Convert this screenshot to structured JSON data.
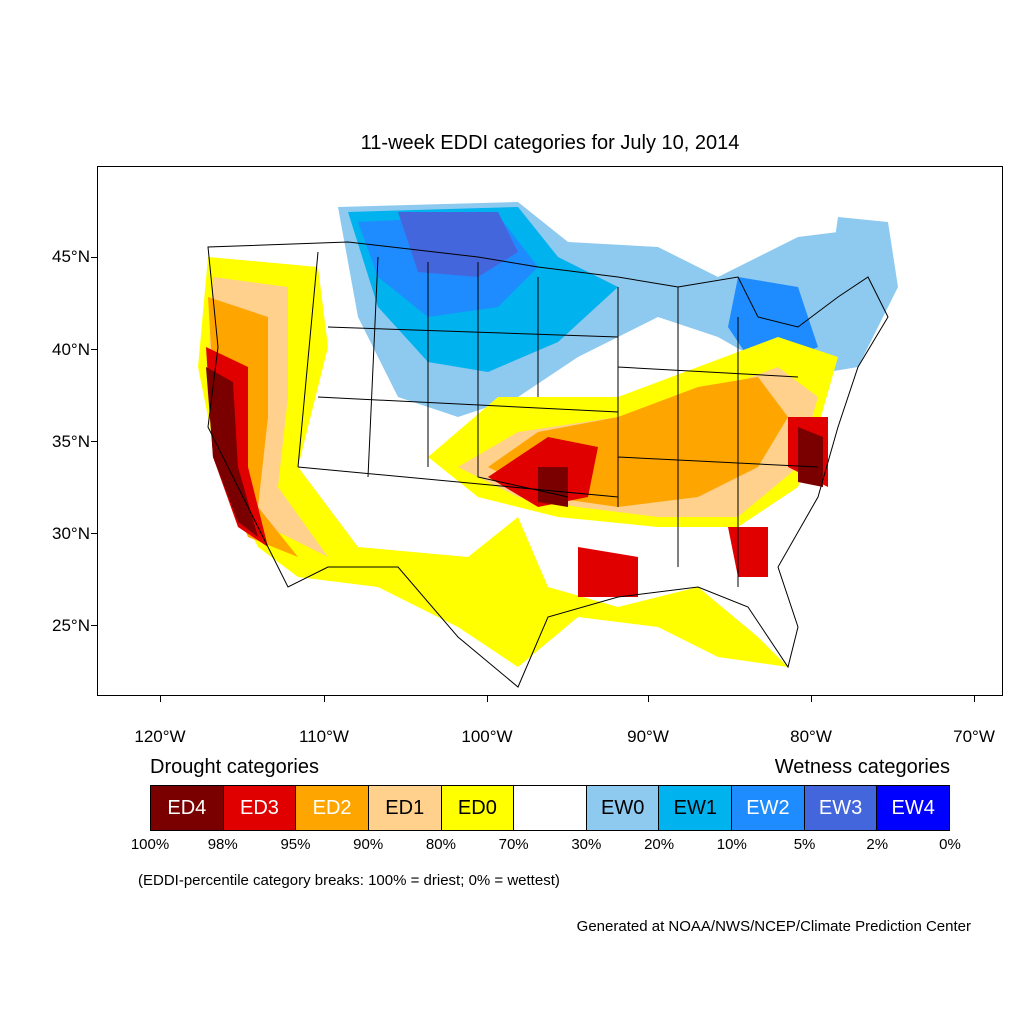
{
  "title": "11-week EDDI categories for July 10, 2014",
  "lat_labels": [
    "45°N",
    "40°N",
    "35°N",
    "30°N",
    "25°N"
  ],
  "lon_labels": [
    "120°W",
    "110°W",
    "100°W",
    "90°W",
    "80°W",
    "70°W"
  ],
  "legend": {
    "drought_heading": "Drought categories",
    "wetness_heading": "Wetness categories",
    "categories": [
      {
        "label": "ED4",
        "color": "#7a0000",
        "text_color": "#ffffff"
      },
      {
        "label": "ED3",
        "color": "#e00000",
        "text_color": "#ffffff"
      },
      {
        "label": "ED2",
        "color": "#ffa500",
        "text_color": "#ffffff"
      },
      {
        "label": "ED1",
        "color": "#ffd18c",
        "text_color": "#000000"
      },
      {
        "label": "ED0",
        "color": "#ffff00",
        "text_color": "#000000"
      },
      {
        "label": "",
        "color": "#ffffff",
        "text_color": "#000000"
      },
      {
        "label": "EW0",
        "color": "#8ec9f0",
        "text_color": "#000000"
      },
      {
        "label": "EW1",
        "color": "#00b2ee",
        "text_color": "#000000"
      },
      {
        "label": "EW2",
        "color": "#1e8cff",
        "text_color": "#ffffff"
      },
      {
        "label": "EW3",
        "color": "#4466dd",
        "text_color": "#ffffff"
      },
      {
        "label": "EW4",
        "color": "#0000ff",
        "text_color": "#ffffff"
      }
    ],
    "breaks": [
      "100%",
      "98%",
      "95%",
      "90%",
      "80%",
      "70%",
      "30%",
      "20%",
      "10%",
      "5%",
      "2%",
      "0%"
    ]
  },
  "note": "(EDDI-percentile category breaks: 100% = driest; 0% = wettest)",
  "credit": "Generated at NOAA/NWS/NCEP/Climate Prediction Center"
}
